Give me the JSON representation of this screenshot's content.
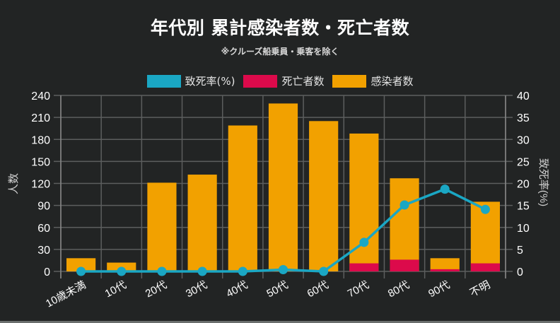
{
  "title": "年代別 累計感染者数・死亡者数",
  "subtitle": "※クルーズ船乗員・乗客を除く",
  "legend": [
    {
      "label": "致死率(%)",
      "color": "#1AA7C4"
    },
    {
      "label": "死亡者数",
      "color": "#DC0A4B"
    },
    {
      "label": "感染者数",
      "color": "#F2A100"
    }
  ],
  "axes": {
    "left_label": "人数",
    "right_label": "致死率(%)",
    "left_ticks": [
      "0",
      "30",
      "60",
      "90",
      "120",
      "150",
      "180",
      "210",
      "240"
    ],
    "right_ticks": [
      "0",
      "5",
      "10",
      "15",
      "20",
      "25",
      "30",
      "35",
      "40"
    ]
  },
  "colors": {
    "background": "#222424",
    "grid": "#5c5e5e",
    "infected": "#F2A100",
    "deaths": "#DC0A4B",
    "rate": "#1AA7C4"
  },
  "chart_data": {
    "type": "bar",
    "title": "年代別 累計感染者数・死亡者数",
    "subtitle": "※クルーズ船乗員・乗客を除く",
    "categories": [
      "10歳未満",
      "10代",
      "20代",
      "30代",
      "40代",
      "50代",
      "60代",
      "70代",
      "80代",
      "90代",
      "不明"
    ],
    "series": [
      {
        "name": "感染者数",
        "type": "bar",
        "axis": "left",
        "stacked_overlay": true,
        "values": [
          18,
          12,
          121,
          132,
          199,
          229,
          205,
          188,
          127,
          18,
          95
        ]
      },
      {
        "name": "死亡者数",
        "type": "bar",
        "axis": "left",
        "values": [
          0,
          0,
          0,
          0,
          0,
          0,
          0,
          11,
          16,
          3,
          11
        ]
      },
      {
        "name": "致死率(%)",
        "type": "line",
        "axis": "right",
        "values": [
          0,
          0,
          0,
          0,
          0,
          0.4,
          0,
          6.6,
          15.1,
          18.7,
          14.1
        ]
      }
    ],
    "xlabel": "",
    "ylabel": "人数",
    "y2label": "致死率(%)",
    "ylim": [
      0,
      240
    ],
    "y2lim": [
      0,
      40
    ],
    "grid": true,
    "legend_position": "top"
  }
}
